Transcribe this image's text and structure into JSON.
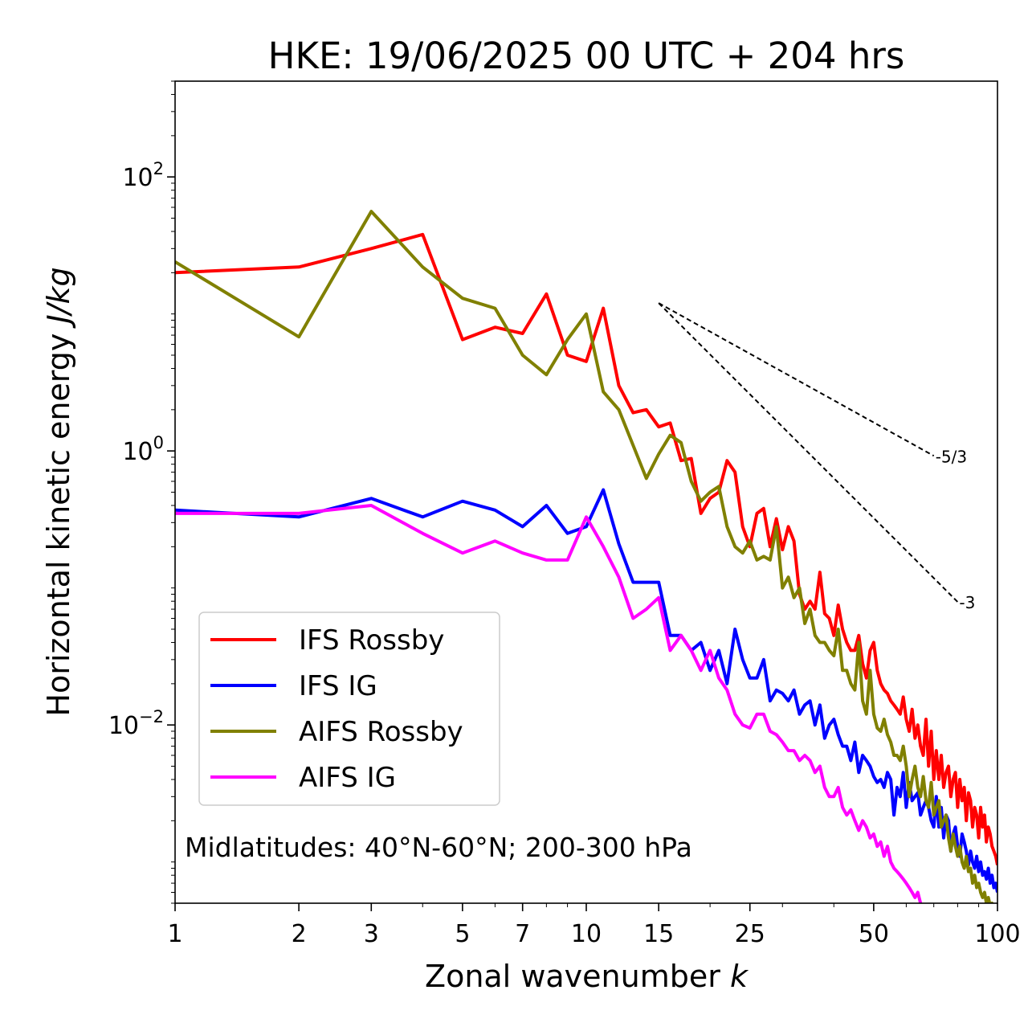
{
  "chart_data": {
    "type": "line",
    "title": "HKE: 19/06/2025 00 UTC + 204 hrs",
    "xlabel_main": "Zonal wavenumber ",
    "xlabel_var": "k",
    "ylabel_main": "Horizontal kinetic energy ",
    "ylabel_unit": "J/kg",
    "xscale": "log",
    "yscale": "log",
    "xlim": [
      1,
      100
    ],
    "ylim": [
      0.0005,
      500
    ],
    "x_ticks": [
      1,
      2,
      3,
      5,
      7,
      10,
      15,
      25,
      50,
      100
    ],
    "x_tick_labels": [
      "1",
      "2",
      "3",
      "5",
      "7",
      "10",
      "15",
      "25",
      "50",
      "100"
    ],
    "y_ticks": [
      100,
      1,
      0.01
    ],
    "y_tick_bases": [
      "10",
      "10",
      "10"
    ],
    "y_tick_exps": [
      "2",
      "0",
      "−2"
    ],
    "annotation": "Midlatitudes: 40°N-60°N; 200-300 hPa",
    "legend_position": "lower-left",
    "reference_lines": [
      {
        "label": "-5/3",
        "slope": -1.6667,
        "x0": 15,
        "y0": 12,
        "x1": 70
      },
      {
        "label": "-3",
        "slope": -3,
        "x0": 15,
        "y0": 12,
        "x1": 80
      }
    ],
    "series": [
      {
        "name": "IFS Rossby",
        "color": "#ff0000",
        "x": [
          1,
          2,
          3,
          4,
          5,
          6,
          7,
          8,
          9,
          10,
          11,
          12,
          13,
          14,
          15,
          16,
          17,
          18,
          19,
          20,
          21,
          22,
          23,
          24,
          25,
          26,
          27,
          28,
          29,
          30,
          31,
          32,
          33,
          34,
          35,
          36,
          37,
          38,
          39,
          40,
          41,
          42,
          43,
          44,
          45,
          46,
          47,
          48,
          49,
          50,
          51,
          52,
          53,
          54,
          55,
          56,
          57,
          58,
          59,
          60,
          61,
          62,
          63,
          64,
          65,
          66,
          67,
          68,
          69,
          70,
          71,
          72,
          73,
          74,
          75,
          76,
          77,
          78,
          79,
          80,
          81,
          82,
          83,
          84,
          85,
          86,
          87,
          88,
          89,
          90,
          91,
          92,
          93,
          94,
          95,
          96,
          97,
          98,
          99,
          100
        ],
        "y": [
          20,
          22,
          30,
          38,
          6.5,
          8,
          7.2,
          14,
          5,
          4.5,
          11,
          3,
          1.9,
          2,
          1.5,
          1.6,
          0.85,
          0.88,
          0.35,
          0.45,
          0.5,
          0.85,
          0.7,
          0.28,
          0.2,
          0.35,
          0.38,
          0.2,
          0.32,
          0.19,
          0.28,
          0.22,
          0.09,
          0.07,
          0.08,
          0.07,
          0.13,
          0.065,
          0.06,
          0.045,
          0.075,
          0.05,
          0.04,
          0.035,
          0.035,
          0.045,
          0.028,
          0.022,
          0.035,
          0.04,
          0.025,
          0.02,
          0.018,
          0.017,
          0.015,
          0.014,
          0.013,
          0.012,
          0.016,
          0.011,
          0.009,
          0.013,
          0.008,
          0.01,
          0.007,
          0.006,
          0.011,
          0.005,
          0.009,
          0.004,
          0.0065,
          0.004,
          0.006,
          0.0035,
          0.0045,
          0.005,
          0.003,
          0.004,
          0.0045,
          0.0025,
          0.004,
          0.0028,
          0.0035,
          0.002,
          0.0032,
          0.0028,
          0.0018,
          0.0025,
          0.0022,
          0.0015,
          0.0025,
          0.0018,
          0.0022,
          0.0014,
          0.0018,
          0.0016,
          0.0013,
          0.0012,
          0.0011,
          0.00095
        ]
      },
      {
        "name": "IFS IG",
        "color": "#0000ff",
        "x": [
          1,
          2,
          3,
          4,
          5,
          6,
          7,
          8,
          9,
          10,
          11,
          12,
          13,
          14,
          15,
          16,
          17,
          18,
          19,
          20,
          21,
          22,
          23,
          24,
          25,
          26,
          27,
          28,
          29,
          30,
          31,
          32,
          33,
          34,
          35,
          36,
          37,
          38,
          39,
          40,
          41,
          42,
          43,
          44,
          45,
          46,
          47,
          48,
          49,
          50,
          51,
          52,
          53,
          54,
          55,
          56,
          57,
          58,
          59,
          60,
          61,
          62,
          63,
          64,
          65,
          66,
          67,
          68,
          69,
          70,
          71,
          72,
          73,
          74,
          75,
          76,
          77,
          78,
          79,
          80,
          81,
          82,
          83,
          84,
          85,
          86,
          87,
          88,
          89,
          90,
          91,
          92,
          93,
          94,
          95,
          96,
          97,
          98,
          99,
          100
        ],
        "y": [
          0.37,
          0.33,
          0.45,
          0.33,
          0.43,
          0.37,
          0.28,
          0.4,
          0.25,
          0.28,
          0.52,
          0.21,
          0.11,
          0.11,
          0.11,
          0.045,
          0.045,
          0.035,
          0.04,
          0.025,
          0.035,
          0.02,
          0.05,
          0.03,
          0.022,
          0.022,
          0.03,
          0.015,
          0.018,
          0.017,
          0.015,
          0.018,
          0.012,
          0.014,
          0.015,
          0.01,
          0.014,
          0.008,
          0.01,
          0.011,
          0.0085,
          0.007,
          0.007,
          0.0055,
          0.0075,
          0.0045,
          0.006,
          0.0055,
          0.005,
          0.0042,
          0.0038,
          0.004,
          0.0035,
          0.0045,
          0.004,
          0.0022,
          0.0035,
          0.003,
          0.0045,
          0.0025,
          0.0038,
          0.0028,
          0.003,
          0.0032,
          0.0022,
          0.0025,
          0.0028,
          0.0025,
          0.002,
          0.0018,
          0.003,
          0.0018,
          0.0025,
          0.0015,
          0.0022,
          0.002,
          0.0012,
          0.0016,
          0.0018,
          0.0013,
          0.0011,
          0.0016,
          0.0014,
          0.0012,
          0.00095,
          0.0012,
          0.001,
          0.0009,
          0.0011,
          0.00085,
          0.001,
          0.0008,
          0.00085,
          0.00075,
          0.0009,
          0.0007,
          0.0008,
          0.00065,
          0.0007,
          0.0006
        ]
      },
      {
        "name": "AIFS Rossby",
        "color": "#808000",
        "x": [
          1,
          2,
          3,
          4,
          5,
          6,
          7,
          8,
          9,
          10,
          11,
          12,
          13,
          14,
          15,
          16,
          17,
          18,
          19,
          20,
          21,
          22,
          23,
          24,
          25,
          26,
          27,
          28,
          29,
          30,
          31,
          32,
          33,
          34,
          35,
          36,
          37,
          38,
          39,
          40,
          41,
          42,
          43,
          44,
          45,
          46,
          47,
          48,
          49,
          50,
          51,
          52,
          53,
          54,
          55,
          56,
          57,
          58,
          59,
          60,
          61,
          62,
          63,
          64,
          65,
          66,
          67,
          68,
          69,
          70,
          71,
          72,
          73,
          74,
          75,
          76,
          77,
          78,
          79,
          80,
          81,
          82,
          83,
          84,
          85,
          86,
          87,
          88,
          89,
          90,
          91,
          92,
          93,
          94,
          95,
          96,
          97,
          98,
          99,
          100
        ],
        "y": [
          24,
          6.8,
          56,
          22,
          13,
          11,
          5,
          3.6,
          6.5,
          10,
          2.7,
          2,
          1.1,
          0.63,
          0.95,
          1.3,
          1.15,
          0.6,
          0.43,
          0.5,
          0.55,
          0.28,
          0.2,
          0.18,
          0.22,
          0.16,
          0.17,
          0.16,
          0.28,
          0.1,
          0.12,
          0.085,
          0.1,
          0.055,
          0.07,
          0.045,
          0.04,
          0.04,
          0.035,
          0.032,
          0.05,
          0.025,
          0.025,
          0.02,
          0.018,
          0.04,
          0.015,
          0.012,
          0.025,
          0.012,
          0.0095,
          0.009,
          0.011,
          0.0085,
          0.0075,
          0.006,
          0.006,
          0.0055,
          0.007,
          0.005,
          0.003,
          0.004,
          0.005,
          0.0035,
          0.003,
          0.0042,
          0.0028,
          0.0025,
          0.0038,
          0.0022,
          0.0025,
          0.0028,
          0.0018,
          0.002,
          0.0022,
          0.0015,
          0.0012,
          0.0016,
          0.0013,
          0.0011,
          0.0013,
          0.001,
          0.0009,
          0.0011,
          0.00085,
          0.0009,
          0.0007,
          0.0008,
          0.00065,
          0.0007,
          0.0006,
          0.00055,
          0.0006,
          0.0005,
          0.00055,
          0.00048,
          0.0005,
          0.00045,
          0.0004,
          0.00035
        ]
      },
      {
        "name": "AIFS IG",
        "color": "#ff00ff",
        "x": [
          1,
          2,
          3,
          4,
          5,
          6,
          7,
          8,
          9,
          10,
          11,
          12,
          13,
          14,
          15,
          16,
          17,
          18,
          19,
          20,
          21,
          22,
          23,
          24,
          25,
          26,
          27,
          28,
          29,
          30,
          31,
          32,
          33,
          34,
          35,
          36,
          37,
          38,
          39,
          40,
          41,
          42,
          43,
          44,
          45,
          46,
          47,
          48,
          49,
          50,
          51,
          52,
          53,
          54,
          55,
          56,
          57,
          58,
          59,
          60,
          61,
          62,
          63,
          64,
          65,
          66,
          67,
          68,
          69,
          70
        ],
        "y": [
          0.35,
          0.35,
          0.4,
          0.25,
          0.18,
          0.22,
          0.18,
          0.16,
          0.16,
          0.33,
          0.2,
          0.12,
          0.06,
          0.07,
          0.085,
          0.035,
          0.045,
          0.035,
          0.025,
          0.035,
          0.022,
          0.018,
          0.012,
          0.01,
          0.0095,
          0.012,
          0.012,
          0.009,
          0.0085,
          0.0075,
          0.0065,
          0.0065,
          0.0055,
          0.006,
          0.0055,
          0.0045,
          0.005,
          0.0035,
          0.003,
          0.003,
          0.0035,
          0.0025,
          0.0022,
          0.0024,
          0.002,
          0.0017,
          0.002,
          0.0018,
          0.0015,
          0.0016,
          0.0013,
          0.0014,
          0.0011,
          0.0013,
          0.001,
          0.0009,
          0.00085,
          0.0008,
          0.00075,
          0.0007,
          0.00065,
          0.0006,
          0.00055,
          0.0006,
          0.0005,
          0.00045,
          0.0004,
          0.00038,
          0.00035,
          0.0003
        ]
      }
    ]
  }
}
